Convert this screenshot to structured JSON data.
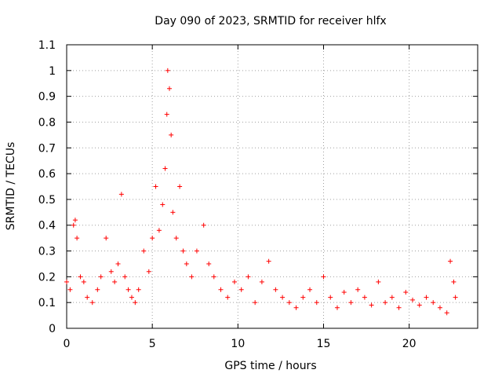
{
  "chart_data": {
    "type": "scatter",
    "title": "Day 090 of 2023, SRMTID for receiver hlfx",
    "xlabel": "GPS time / hours",
    "ylabel": "SRMTID / TECUs",
    "xlim": [
      0,
      24
    ],
    "ylim": [
      0,
      1.1
    ],
    "xticks": [
      0,
      5,
      10,
      15,
      20
    ],
    "yticks": [
      0,
      0.1,
      0.2,
      0.3,
      0.4,
      0.5,
      0.6,
      0.7,
      0.8,
      0.9,
      1,
      1.1
    ],
    "xtick_labels": [
      "0",
      "5",
      "10",
      "15",
      "20"
    ],
    "ytick_labels": [
      "0",
      "0.1",
      "0.2",
      "0.3",
      "0.4",
      "0.5",
      "0.6",
      "0.7",
      "0.8",
      "0.9",
      "1",
      "1.1"
    ],
    "grid": true,
    "marker": "+",
    "color": "#ff0000",
    "series": [
      {
        "name": "SRMTID",
        "x": [
          0.0,
          0.2,
          0.4,
          0.5,
          0.6,
          0.8,
          1.0,
          1.2,
          1.5,
          1.8,
          2.0,
          2.3,
          2.6,
          2.8,
          3.0,
          3.2,
          3.4,
          3.6,
          3.8,
          4.0,
          4.2,
          4.5,
          4.8,
          5.0,
          5.2,
          5.4,
          5.6,
          5.75,
          5.85,
          5.9,
          6.0,
          6.1,
          6.2,
          6.4,
          6.6,
          6.8,
          7.0,
          7.3,
          7.6,
          8.0,
          8.3,
          8.6,
          9.0,
          9.4,
          9.8,
          10.2,
          10.6,
          11.0,
          11.4,
          11.8,
          12.2,
          12.6,
          13.0,
          13.4,
          13.8,
          14.2,
          14.6,
          15.0,
          15.4,
          15.8,
          16.2,
          16.6,
          17.0,
          17.4,
          17.8,
          18.2,
          18.6,
          19.0,
          19.4,
          19.8,
          20.2,
          20.6,
          21.0,
          21.4,
          21.8,
          22.2,
          22.4,
          22.6,
          22.7
        ],
        "y": [
          0.18,
          0.15,
          0.4,
          0.42,
          0.35,
          0.2,
          0.18,
          0.12,
          0.1,
          0.15,
          0.2,
          0.35,
          0.22,
          0.18,
          0.25,
          0.52,
          0.2,
          0.15,
          0.12,
          0.1,
          0.15,
          0.3,
          0.22,
          0.35,
          0.55,
          0.38,
          0.48,
          0.62,
          0.83,
          1.0,
          0.93,
          0.75,
          0.45,
          0.35,
          0.55,
          0.3,
          0.25,
          0.2,
          0.3,
          0.4,
          0.25,
          0.2,
          0.15,
          0.12,
          0.18,
          0.15,
          0.2,
          0.1,
          0.18,
          0.26,
          0.15,
          0.12,
          0.1,
          0.08,
          0.12,
          0.15,
          0.1,
          0.2,
          0.12,
          0.08,
          0.14,
          0.1,
          0.15,
          0.12,
          0.09,
          0.18,
          0.1,
          0.12,
          0.08,
          0.14,
          0.11,
          0.09,
          0.12,
          0.1,
          0.08,
          0.06,
          0.26,
          0.18,
          0.12
        ]
      }
    ]
  }
}
